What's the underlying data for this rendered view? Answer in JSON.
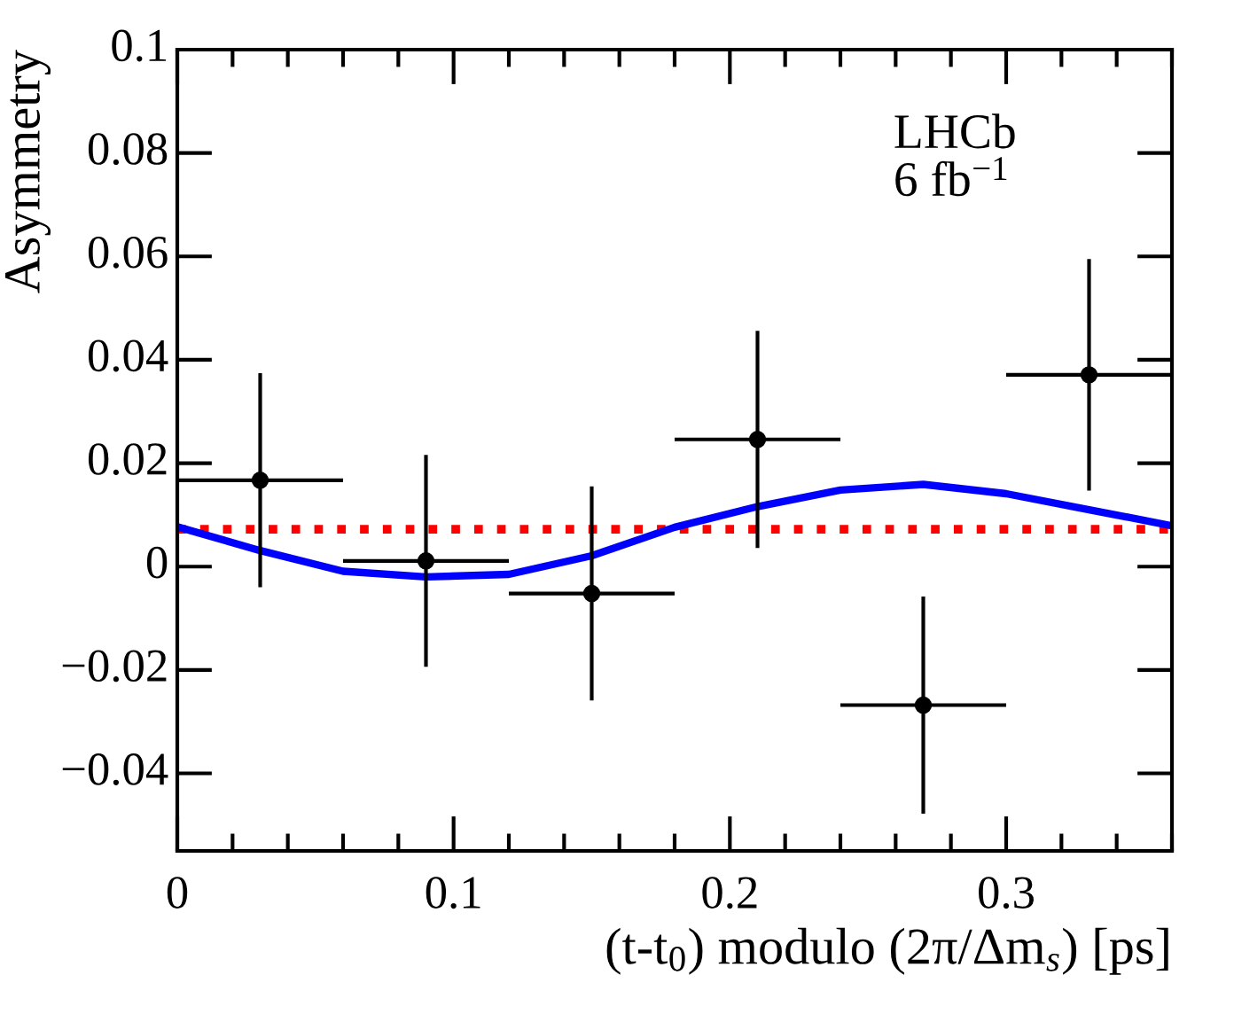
{
  "chart_data": {
    "type": "scatter",
    "xlabel": "(t-t$_{0}$) modulo (2π/Δm$_{s}$) [ps]",
    "ylabel": "Asymmetry",
    "xlim": [
      0,
      0.36
    ],
    "xticks": [
      0,
      0.1,
      0.2,
      0.3
    ],
    "ylim": [
      -0.055,
      0.1
    ],
    "yticks": [
      -0.04,
      -0.02,
      0,
      0.02,
      0.04,
      0.06,
      0.08,
      0.1
    ],
    "grid": false,
    "legend": false,
    "series": [
      {
        "type": "line",
        "color": "#0000ff",
        "line_style": "solid",
        "marker": "none",
        "x": [
          0,
          0.03,
          0.06,
          0.09,
          0.12,
          0.15,
          0.18,
          0.21,
          0.24,
          0.27,
          0.3,
          0.33,
          0.36
        ],
        "values": [
          0.0077,
          0.0031,
          -0.0009,
          -0.002,
          -0.0015,
          0.0021,
          0.0076,
          0.0116,
          0.0148,
          0.0159,
          0.0141,
          0.011,
          0.0079
        ]
      },
      {
        "color": "#000000",
        "marker": "circle",
        "x": [
          0.03,
          0.09,
          0.15,
          0.21,
          0.27,
          0.33
        ],
        "values": [
          0.0167,
          0.0011,
          -0.0052,
          0.0246,
          -0.0268,
          0.0371
        ],
        "errors": [
          0.0207,
          0.0205,
          0.0207,
          0.021,
          0.021,
          0.0224
        ],
        "xerrors": [
          0.03,
          0.03,
          0.03,
          0.03,
          0.03,
          0.03
        ]
      }
    ],
    "ref_lines": [
      {
        "axis": "y",
        "value": 0.0072,
        "color": "#ff0000",
        "line_style": "dotted"
      }
    ],
    "annotations": [
      "LHCb\n6 fb$^{−1}$"
    ]
  }
}
